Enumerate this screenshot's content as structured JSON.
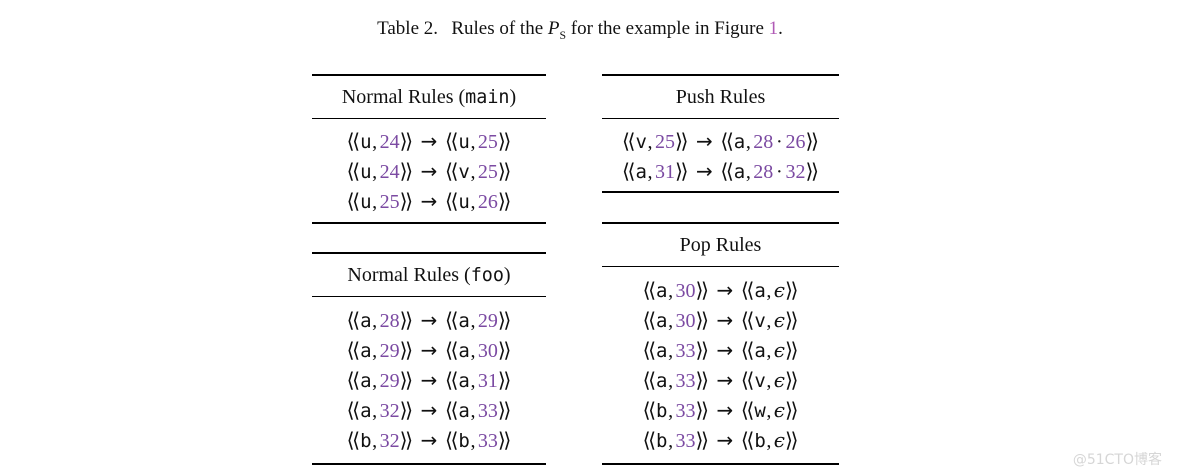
{
  "caption": {
    "label": "Table 2.",
    "body_pre": "Rules of the",
    "symbol_main": "P",
    "symbol_sub": "S",
    "body_post": "for the example in Figure",
    "figure_ref": "1",
    "period": "."
  },
  "glyphs": {
    "open_bracket": "⟨⟨",
    "close_bracket": "⟩⟩",
    "comma": ",",
    "arrow": "→",
    "dot": "·",
    "epsilon": "ϵ"
  },
  "colors": {
    "text": "#111111",
    "line_number_purple": "#7b4aa2",
    "figure_ref_purple": "#b05ab5",
    "table_rule": "#000000",
    "watermark_gray": "#d6d6d6"
  },
  "tables": [
    {
      "id": "normal-main",
      "title_parts": [
        {
          "text": "Normal Rules (",
          "mono": false
        },
        {
          "text": "main",
          "mono": true
        },
        {
          "text": ")",
          "mono": false
        }
      ],
      "rules": [
        {
          "lhs": [
            "u",
            "24"
          ],
          "rhs": [
            "u",
            "25"
          ]
        },
        {
          "lhs": [
            "u",
            "24"
          ],
          "rhs": [
            "v",
            "25"
          ]
        },
        {
          "lhs": [
            "u",
            "25"
          ],
          "rhs": [
            "u",
            "26"
          ]
        }
      ]
    },
    {
      "id": "push",
      "title_parts": [
        {
          "text": "Push Rules",
          "mono": false
        }
      ],
      "rules": [
        {
          "lhs": [
            "v",
            "25"
          ],
          "rhs": [
            "a",
            "28",
            "26"
          ]
        },
        {
          "lhs": [
            "a",
            "31"
          ],
          "rhs": [
            "a",
            "28",
            "32"
          ]
        }
      ]
    },
    {
      "id": "normal-foo",
      "title_parts": [
        {
          "text": "Normal Rules (",
          "mono": false
        },
        {
          "text": "foo",
          "mono": true
        },
        {
          "text": ")",
          "mono": false
        }
      ],
      "rules": [
        {
          "lhs": [
            "a",
            "28"
          ],
          "rhs": [
            "a",
            "29"
          ]
        },
        {
          "lhs": [
            "a",
            "29"
          ],
          "rhs": [
            "a",
            "30"
          ]
        },
        {
          "lhs": [
            "a",
            "29"
          ],
          "rhs": [
            "a",
            "31"
          ]
        },
        {
          "lhs": [
            "a",
            "32"
          ],
          "rhs": [
            "a",
            "33"
          ]
        },
        {
          "lhs": [
            "b",
            "32"
          ],
          "rhs": [
            "b",
            "33"
          ]
        }
      ]
    },
    {
      "id": "pop",
      "title_parts": [
        {
          "text": "Pop Rules",
          "mono": false
        }
      ],
      "rules": [
        {
          "lhs": [
            "a",
            "30"
          ],
          "rhs": [
            "a",
            "ϵ"
          ]
        },
        {
          "lhs": [
            "a",
            "30"
          ],
          "rhs": [
            "v",
            "ϵ"
          ]
        },
        {
          "lhs": [
            "a",
            "33"
          ],
          "rhs": [
            "a",
            "ϵ"
          ]
        },
        {
          "lhs": [
            "a",
            "33"
          ],
          "rhs": [
            "v",
            "ϵ"
          ]
        },
        {
          "lhs": [
            "b",
            "33"
          ],
          "rhs": [
            "w",
            "ϵ"
          ]
        },
        {
          "lhs": [
            "b",
            "33"
          ],
          "rhs": [
            "b",
            "ϵ"
          ]
        }
      ]
    }
  ],
  "watermark": {
    "text": "@51CTO博客"
  }
}
